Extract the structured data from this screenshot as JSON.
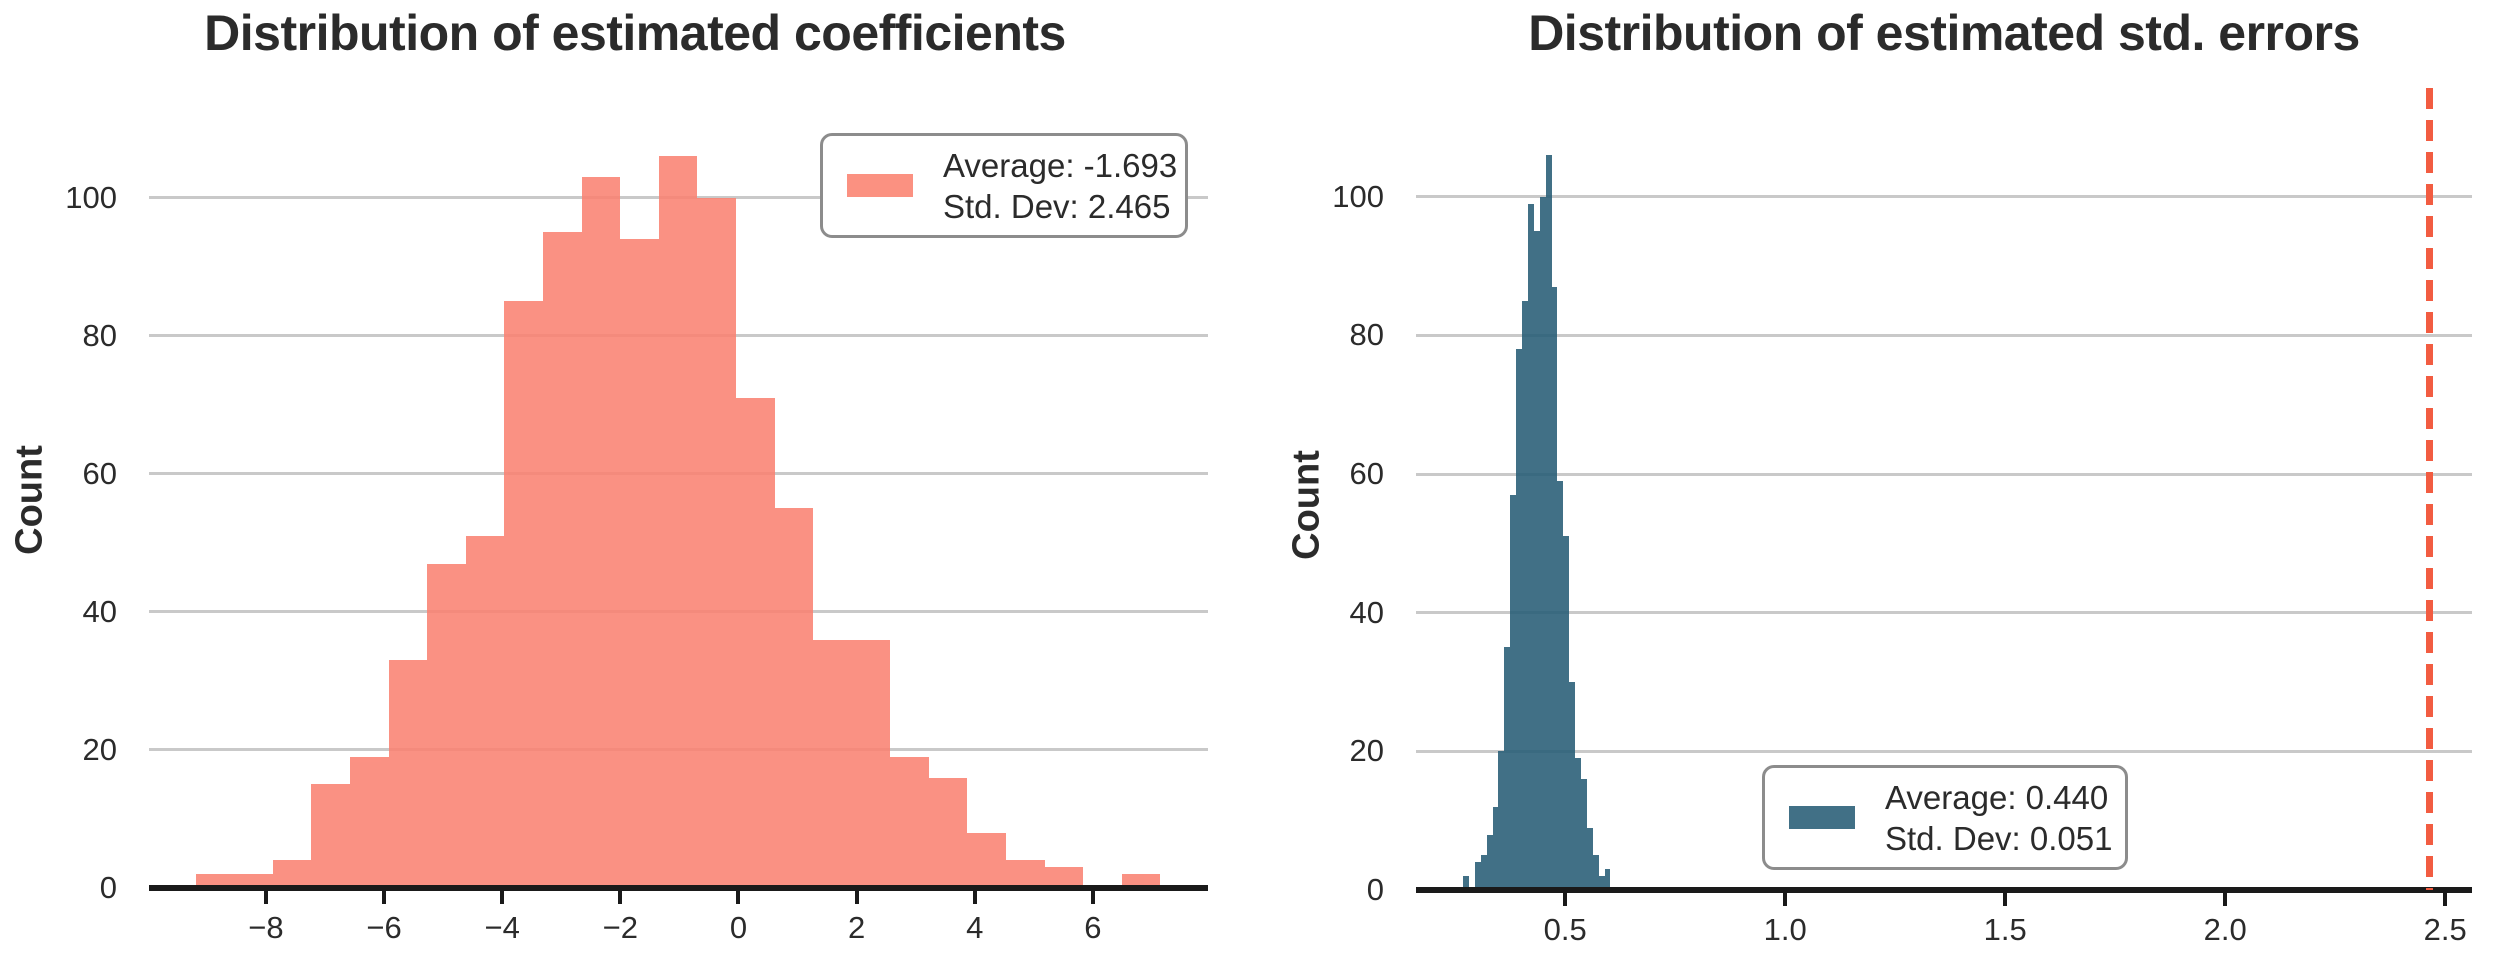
{
  "page": {
    "background": "#ffffff",
    "grid_color": "#c9c9c9",
    "axis_color": "#1a1a1a",
    "text_color": "#2b2b2b"
  },
  "chart_data": [
    {
      "type": "bar",
      "subtype": "histogram",
      "title": "Distribution of estimated coefficients",
      "xlabel": "",
      "ylabel": "Count",
      "xlim": [
        -9.98,
        7.95
      ],
      "ylim": [
        0,
        115.9
      ],
      "grid": "horizontal",
      "x_tick_values": [
        -8,
        -6,
        -4,
        -2,
        0,
        2,
        4,
        6
      ],
      "x_ticks": [
        "−8",
        "−6",
        "−4",
        "−2",
        "0",
        "2",
        "4",
        "6"
      ],
      "y_tick_values": [
        0,
        20,
        40,
        60,
        80,
        100
      ],
      "y_ticks": [
        "0",
        "20",
        "40",
        "60",
        "80",
        "100"
      ],
      "bins": {
        "start": -9.19,
        "bin_width": 0.6534,
        "counts": [
          2,
          2,
          4,
          15,
          19,
          33,
          47,
          51,
          85,
          95,
          103,
          94,
          106,
          100,
          71,
          55,
          36,
          36,
          19,
          16,
          8,
          4,
          3,
          0,
          2
        ]
      },
      "bar_color": "#fa8272",
      "bar_opacity": 0.88,
      "stats": {
        "average": -1.693,
        "std_dev": 2.465
      },
      "legend": {
        "position": "upper right",
        "swatch_color": "#fb9181",
        "lines": [
          "Average: -1.693",
          "Std. Dev: 2.465"
        ]
      }
    },
    {
      "type": "bar",
      "subtype": "histogram",
      "title": "Distribution of estimated std. errors",
      "xlabel": "",
      "ylabel": "Count",
      "xlim": [
        0.161,
        2.561
      ],
      "ylim": [
        0,
        115.7
      ],
      "grid": "horizontal",
      "x_tick_values": [
        0.5,
        1.0,
        1.5,
        2.0,
        2.5
      ],
      "x_ticks": [
        "0.5",
        "1.0",
        "1.5",
        "2.0",
        "2.5"
      ],
      "y_tick_values": [
        0,
        20,
        40,
        60,
        80,
        100
      ],
      "y_ticks": [
        "0",
        "20",
        "40",
        "60",
        "80",
        "100"
      ],
      "bins": {
        "start": 0.268,
        "bin_width": 0.0134,
        "counts": [
          2,
          0,
          4,
          5,
          8,
          12,
          20,
          35,
          57,
          78,
          85,
          99,
          95,
          100,
          106,
          87,
          59,
          51,
          30,
          19,
          16,
          9,
          5,
          2,
          3
        ]
      },
      "bar_color": "#275d76",
      "bar_opacity": 0.88,
      "stats": {
        "average": 0.44,
        "std_dev": 0.051
      },
      "vline": {
        "x": 2.465,
        "color": "#f25c41",
        "style": "dashed"
      },
      "legend": {
        "position": "lower center",
        "swatch_color": "#417086",
        "lines": [
          "Average: 0.440",
          "Std. Dev: 0.051"
        ]
      }
    }
  ]
}
